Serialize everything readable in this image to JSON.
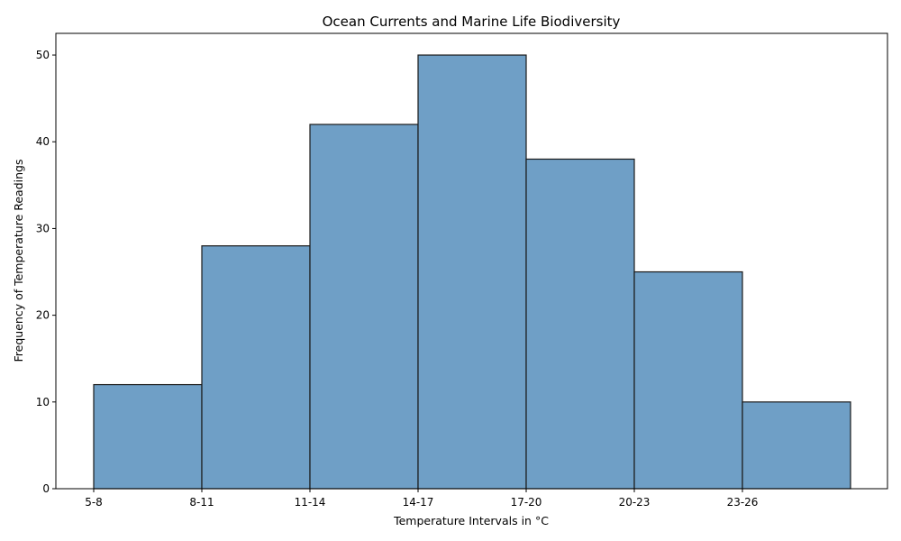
{
  "chart_data": {
    "type": "bar",
    "title": "Ocean Currents and Marine Life Biodiversity",
    "xlabel": "Temperature Intervals in °C",
    "ylabel": "Frequency of Temperature Readings",
    "categories": [
      "5-8",
      "8-11",
      "11-14",
      "14-17",
      "17-20",
      "20-23",
      "23-26"
    ],
    "values": [
      12,
      28,
      42,
      50,
      38,
      25,
      10
    ],
    "ylim": [
      0,
      52.5
    ],
    "yticks": [
      0,
      10,
      20,
      30,
      40,
      50
    ],
    "grid": false,
    "legend": "none",
    "bar_color": "#6f9fc6",
    "edge_color": "#1a1a1a"
  }
}
